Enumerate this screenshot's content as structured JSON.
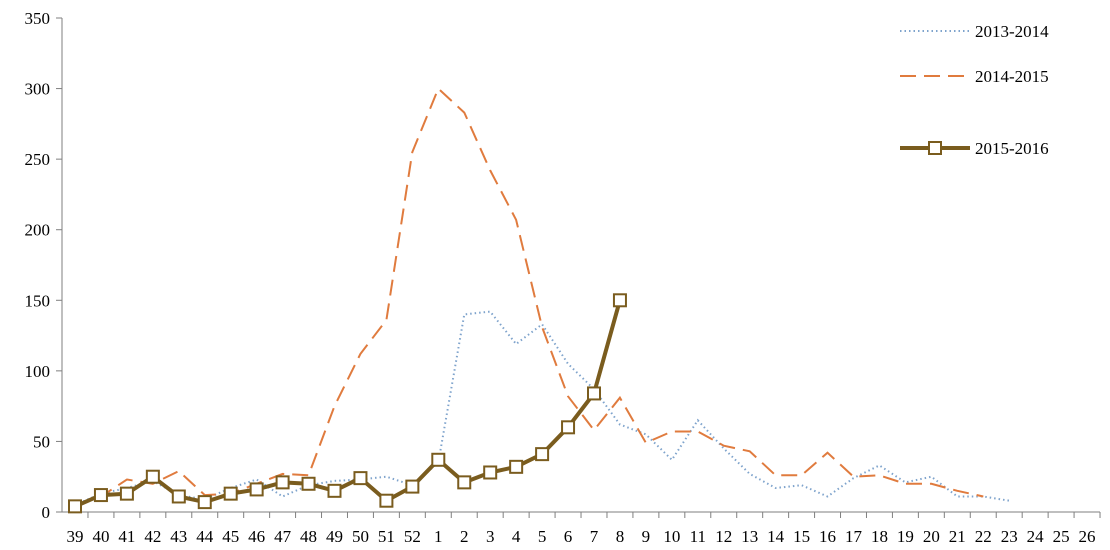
{
  "chart_data": {
    "type": "line",
    "title": "",
    "xlabel": "",
    "ylabel": "",
    "ylim": [
      0,
      350
    ],
    "yticks": [
      0,
      50,
      100,
      150,
      200,
      250,
      300,
      350
    ],
    "grid": false,
    "legend_position": "top-right",
    "categories": [
      "39",
      "40",
      "41",
      "42",
      "43",
      "44",
      "45",
      "46",
      "47",
      "48",
      "49",
      "50",
      "51",
      "52",
      "1",
      "2",
      "3",
      "4",
      "5",
      "6",
      "7",
      "8",
      "9",
      "10",
      "11",
      "12",
      "13",
      "14",
      "15",
      "16",
      "17",
      "18",
      "19",
      "20",
      "21",
      "22",
      "23",
      "24",
      "25",
      "26"
    ],
    "series": [
      {
        "name": "2013-2014",
        "color": "#7ea3cc",
        "style": "dotted",
        "values": [
          5,
          13,
          17,
          22,
          12,
          9,
          17,
          23,
          11,
          19,
          22,
          23,
          25,
          19,
          35,
          140,
          142,
          119,
          133,
          105,
          87,
          62,
          55,
          37,
          65,
          45,
          27,
          17,
          19,
          11,
          24,
          33,
          21,
          25,
          11,
          11,
          8,
          null,
          null,
          null
        ]
      },
      {
        "name": "2014-2015",
        "color": "#e07b3e",
        "style": "dashed",
        "values": [
          5,
          11,
          23,
          20,
          29,
          12,
          13,
          20,
          27,
          26,
          75,
          112,
          136,
          255,
          300,
          283,
          242,
          207,
          131,
          82,
          58,
          81,
          49,
          57,
          57,
          47,
          43,
          26,
          26,
          42,
          25,
          26,
          20,
          20,
          15,
          11,
          null,
          null,
          null,
          null
        ]
      },
      {
        "name": "2015-2016",
        "color": "#7a5c1e",
        "style": "solid-marker",
        "values": [
          4,
          12,
          13,
          25,
          11,
          7,
          13,
          16,
          21,
          20,
          15,
          24,
          8,
          18,
          37,
          21,
          28,
          32,
          41,
          60,
          84,
          150,
          null,
          null,
          null,
          null,
          null,
          null,
          null,
          null,
          null,
          null,
          null,
          null,
          null,
          null,
          null,
          null,
          null,
          null
        ]
      }
    ]
  }
}
